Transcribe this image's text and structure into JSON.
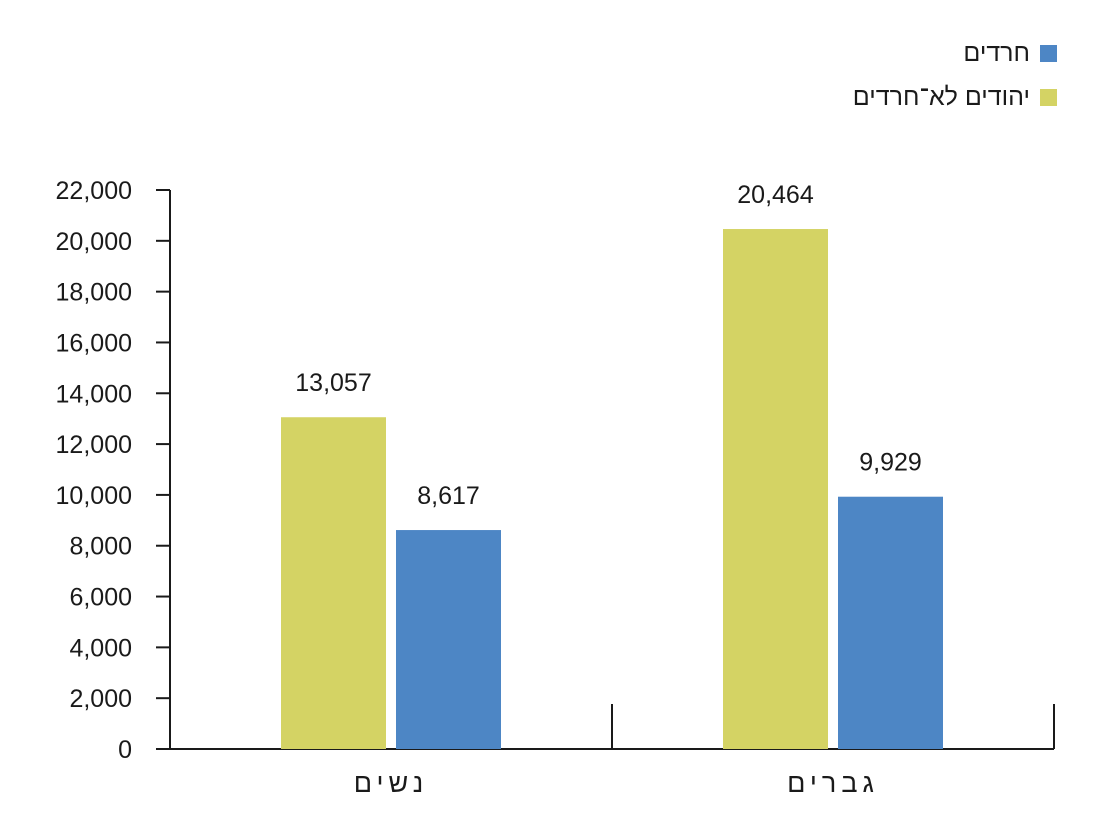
{
  "chart_data": {
    "type": "bar",
    "categories": [
      "נשים",
      "גברים"
    ],
    "series": [
      {
        "name": "יהודים לא־חרדים",
        "color": "#d4d364",
        "values": [
          13057,
          20464
        ]
      },
      {
        "name": "חרדים",
        "color": "#4d86c5",
        "values": [
          8617,
          9929
        ]
      }
    ],
    "legend_order": [
      1,
      0
    ],
    "legend_position": "top-right",
    "value_labels": [
      "13,057",
      "20,464",
      "8,617",
      "9,929"
    ],
    "ylim": [
      0,
      22000
    ],
    "yticks": [
      0,
      2000,
      4000,
      6000,
      8000,
      10000,
      12000,
      14000,
      16000,
      18000,
      20000,
      22000
    ],
    "ytick_labels": [
      "0",
      "2,000",
      "4,000",
      "6,000",
      "8,000",
      "10,000",
      "12,000",
      "14,000",
      "16,000",
      "18,000",
      "20,000",
      "22,000"
    ],
    "grid": false,
    "title": "",
    "xlabel": "",
    "ylabel": ""
  }
}
